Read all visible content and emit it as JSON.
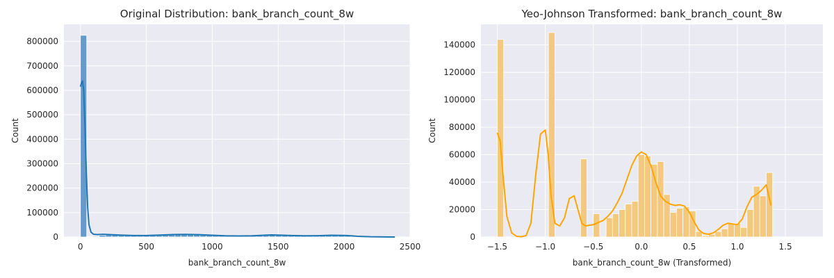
{
  "chart_data": [
    {
      "type": "bar",
      "title": "Original Distribution: bank_branch_count_8w",
      "xlabel": "bank_branch_count_8w",
      "ylabel": "Count",
      "xlim": [
        -125,
        2500
      ],
      "ylim": [
        0,
        870000
      ],
      "xticks": [
        "0",
        "500",
        "1000",
        "1500",
        "2000",
        "2500"
      ],
      "xtick_values": [
        0,
        500,
        1000,
        1500,
        2000,
        2500
      ],
      "yticks": [
        "0",
        "100000",
        "200000",
        "300000",
        "400000",
        "500000",
        "600000",
        "700000",
        "800000"
      ],
      "ytick_values": [
        0,
        100000,
        200000,
        300000,
        400000,
        500000,
        600000,
        700000,
        800000
      ],
      "bar_color": "#4c8dc4",
      "kde_color": "#1f77b4",
      "bin_width": 47.7,
      "bins": [
        {
          "x": 0,
          "count": 825000
        },
        {
          "x": 47.7,
          "count": 2000
        },
        {
          "x": 95.4,
          "count": 3000
        },
        {
          "x": 143.1,
          "count": 7000
        },
        {
          "x": 190.8,
          "count": 9000
        },
        {
          "x": 238.5,
          "count": 9000
        },
        {
          "x": 286.2,
          "count": 8000
        },
        {
          "x": 333.9,
          "count": 7000
        },
        {
          "x": 381.6,
          "count": 6000
        },
        {
          "x": 429.3,
          "count": 5000
        },
        {
          "x": 477,
          "count": 6000
        },
        {
          "x": 524.7,
          "count": 7000
        },
        {
          "x": 572.4,
          "count": 8000
        },
        {
          "x": 620.1,
          "count": 9000
        },
        {
          "x": 667.8,
          "count": 9000
        },
        {
          "x": 715.5,
          "count": 10000
        },
        {
          "x": 763.2,
          "count": 10000
        },
        {
          "x": 810.9,
          "count": 10000
        },
        {
          "x": 858.6,
          "count": 9000
        },
        {
          "x": 906.3,
          "count": 8000
        },
        {
          "x": 954,
          "count": 7000
        },
        {
          "x": 1001.7,
          "count": 6000
        },
        {
          "x": 1049.4,
          "count": 5000
        },
        {
          "x": 1097.1,
          "count": 4000
        },
        {
          "x": 1144.8,
          "count": 4000
        },
        {
          "x": 1192.5,
          "count": 4000
        },
        {
          "x": 1240.2,
          "count": 5000
        },
        {
          "x": 1287.9,
          "count": 6000
        },
        {
          "x": 1335.6,
          "count": 8000
        },
        {
          "x": 1383.3,
          "count": 9000
        },
        {
          "x": 1431,
          "count": 9000
        },
        {
          "x": 1478.7,
          "count": 8000
        },
        {
          "x": 1526.4,
          "count": 7000
        },
        {
          "x": 1574.1,
          "count": 6000
        },
        {
          "x": 1621.8,
          "count": 5000
        },
        {
          "x": 1669.5,
          "count": 5000
        },
        {
          "x": 1717.2,
          "count": 6000
        },
        {
          "x": 1764.9,
          "count": 7000
        },
        {
          "x": 1812.6,
          "count": 8000
        },
        {
          "x": 1860.3,
          "count": 8000
        },
        {
          "x": 1908,
          "count": 7000
        },
        {
          "x": 1955.7,
          "count": 6000
        },
        {
          "x": 2003.4,
          "count": 5000
        },
        {
          "x": 2051.1,
          "count": 3000
        },
        {
          "x": 2098.8,
          "count": 2000
        },
        {
          "x": 2146.5,
          "count": 1000
        },
        {
          "x": 2194.2,
          "count": 1000
        },
        {
          "x": 2241.9,
          "count": 500
        },
        {
          "x": 2289.6,
          "count": 300
        },
        {
          "x": 2337.3,
          "count": 200
        }
      ],
      "kde": {
        "x": [
          0,
          8,
          16,
          25,
          35,
          45,
          55,
          65,
          80,
          100,
          130,
          170,
          220,
          300,
          400,
          500,
          600,
          700,
          800,
          900,
          1000,
          1100,
          1200,
          1300,
          1400,
          1450,
          1500,
          1600,
          1700,
          1800,
          1900,
          2000,
          2050,
          2100,
          2200,
          2300,
          2385
        ],
        "y": [
          615000,
          630000,
          638000,
          600000,
          450000,
          260000,
          120000,
          50000,
          20000,
          11000,
          10000,
          11000,
          10000,
          8000,
          6000,
          6000,
          8000,
          10000,
          10500,
          9500,
          7000,
          5000,
          4200,
          5000,
          7500,
          8500,
          8000,
          6000,
          5000,
          5500,
          7000,
          6500,
          5000,
          3000,
          1000,
          200,
          50
        ]
      }
    },
    {
      "type": "bar",
      "title": "Yeo-Johnson Transformed: bank_branch_count_8w",
      "xlabel": "bank_branch_count_8w (Transformed)",
      "ylabel": "Count",
      "xlim": [
        -1.67,
        1.89
      ],
      "ylim": [
        0,
        155000
      ],
      "xticks": [
        "−1.5",
        "−1.0",
        "−0.5",
        "0.0",
        "0.5",
        "1.0",
        "1.5"
      ],
      "xtick_values": [
        -1.5,
        -1.0,
        -0.5,
        0.0,
        0.5,
        1.0,
        1.5
      ],
      "yticks": [
        "0",
        "20000",
        "40000",
        "60000",
        "80000",
        "100000",
        "120000",
        "140000"
      ],
      "ytick_values": [
        0,
        20000,
        40000,
        60000,
        80000,
        100000,
        120000,
        140000
      ],
      "bar_color": "#f5c26b",
      "kde_color": "#ffa500",
      "bin_width": 0.0667,
      "bins": [
        {
          "x": -1.5,
          "count": 144000
        },
        {
          "x": -1.4333,
          "count": 0
        },
        {
          "x": -1.3667,
          "count": 0
        },
        {
          "x": -1.3,
          "count": 0
        },
        {
          "x": -1.2333,
          "count": 0
        },
        {
          "x": -1.1667,
          "count": 0
        },
        {
          "x": -1.1,
          "count": 0
        },
        {
          "x": -1.0333,
          "count": 0
        },
        {
          "x": -0.9667,
          "count": 149000
        },
        {
          "x": -0.9,
          "count": 0
        },
        {
          "x": -0.8333,
          "count": 0
        },
        {
          "x": -0.7667,
          "count": 0
        },
        {
          "x": -0.7,
          "count": 0
        },
        {
          "x": -0.6333,
          "count": 57000
        },
        {
          "x": -0.5667,
          "count": 0
        },
        {
          "x": -0.5,
          "count": 17000
        },
        {
          "x": -0.4333,
          "count": 0
        },
        {
          "x": -0.3667,
          "count": 14000
        },
        {
          "x": -0.3,
          "count": 17000
        },
        {
          "x": -0.2333,
          "count": 20000
        },
        {
          "x": -0.1667,
          "count": 24000
        },
        {
          "x": -0.1,
          "count": 26000
        },
        {
          "x": -0.0333,
          "count": 60000
        },
        {
          "x": 0.0333,
          "count": 59000
        },
        {
          "x": 0.1,
          "count": 53000
        },
        {
          "x": 0.1667,
          "count": 55000
        },
        {
          "x": 0.2333,
          "count": 31000
        },
        {
          "x": 0.3,
          "count": 18000
        },
        {
          "x": 0.3667,
          "count": 21000
        },
        {
          "x": 0.4333,
          "count": 22000
        },
        {
          "x": 0.5,
          "count": 19000
        },
        {
          "x": 0.5667,
          "count": 4000
        },
        {
          "x": 0.6333,
          "count": 1000
        },
        {
          "x": 0.7,
          "count": 2000
        },
        {
          "x": 0.7667,
          "count": 4000
        },
        {
          "x": 0.8333,
          "count": 6000
        },
        {
          "x": 0.9,
          "count": 10000
        },
        {
          "x": 0.9667,
          "count": 10000
        },
        {
          "x": 1.0333,
          "count": 7000
        },
        {
          "x": 1.1,
          "count": 20000
        },
        {
          "x": 1.1667,
          "count": 37000
        },
        {
          "x": 1.2333,
          "count": 30000
        },
        {
          "x": 1.3,
          "count": 47000
        }
      ],
      "kde": {
        "x": [
          -1.5,
          -1.47,
          -1.44,
          -1.4,
          -1.35,
          -1.3,
          -1.25,
          -1.2,
          -1.15,
          -1.1,
          -1.05,
          -1.0,
          -0.97,
          -0.94,
          -0.9,
          -0.85,
          -0.8,
          -0.75,
          -0.7,
          -0.66,
          -0.62,
          -0.58,
          -0.55,
          -0.5,
          -0.45,
          -0.4,
          -0.35,
          -0.3,
          -0.25,
          -0.2,
          -0.15,
          -0.1,
          -0.05,
          0.0,
          0.05,
          0.1,
          0.15,
          0.2,
          0.25,
          0.3,
          0.35,
          0.4,
          0.45,
          0.5,
          0.55,
          0.6,
          0.65,
          0.7,
          0.75,
          0.8,
          0.85,
          0.9,
          0.95,
          1.0,
          1.05,
          1.1,
          1.15,
          1.2,
          1.25,
          1.3,
          1.35
        ],
        "y": [
          76000,
          70000,
          45000,
          15000,
          3000,
          500,
          200,
          1000,
          10000,
          45000,
          75000,
          78000,
          60000,
          30000,
          10000,
          8000,
          14000,
          28000,
          30000,
          20000,
          10000,
          8000,
          8500,
          9000,
          10500,
          12000,
          15000,
          19000,
          25000,
          32000,
          42000,
          52000,
          59000,
          62000,
          60000,
          52000,
          40000,
          30000,
          26000,
          24000,
          23000,
          23500,
          22500,
          18000,
          11000,
          5000,
          2500,
          2000,
          3000,
          5500,
          8500,
          10000,
          9500,
          9000,
          13000,
          22000,
          29000,
          31000,
          34000,
          38000,
          23000
        ]
      }
    }
  ]
}
